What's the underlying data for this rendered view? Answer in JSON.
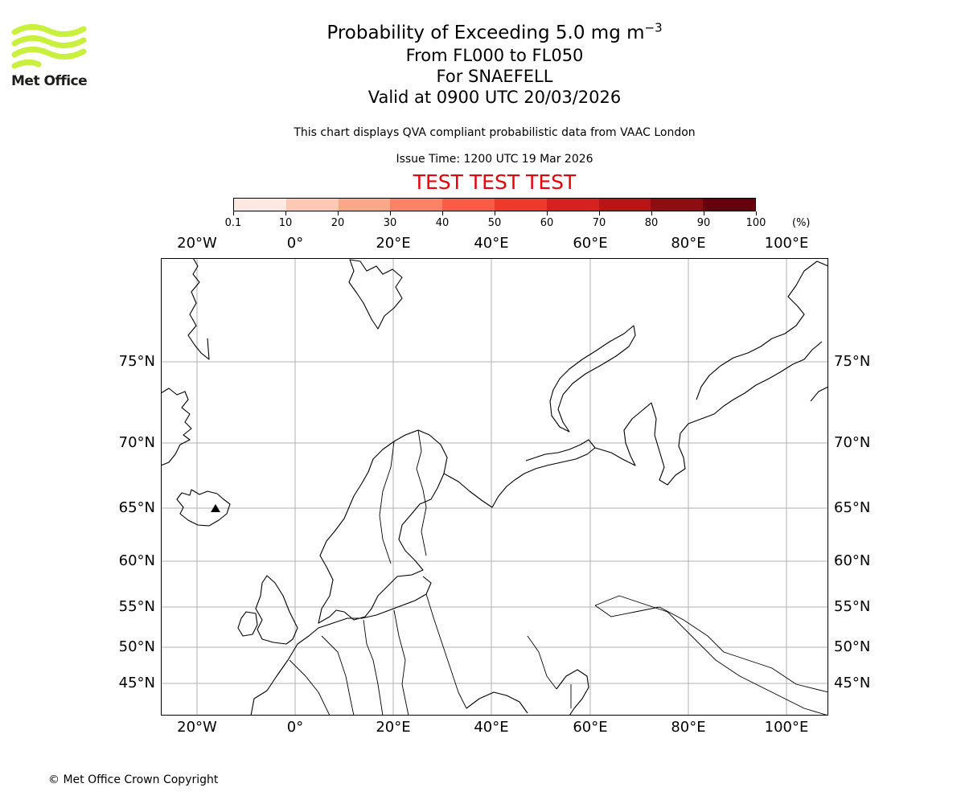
{
  "logo": {
    "text": "Met Office",
    "color": "#c8f03c"
  },
  "title": {
    "line1": "Probability of Exceeding 5.0 mg m",
    "line1_sup": "−3",
    "line2": "From FL000 to FL050",
    "line3": "For SNAEFELL",
    "line4": "Valid at 0900 UTC 20/03/2026"
  },
  "subtitle": "This chart displays QVA compliant probabilistic data from VAAC London",
  "issue_time": "Issue Time: 1200 UTC 19 Mar 2026",
  "test_banner": {
    "text": "TEST TEST TEST",
    "color": "#e8000b"
  },
  "colorbar": {
    "labels": [
      "0.1",
      "10",
      "20",
      "30",
      "40",
      "50",
      "60",
      "70",
      "80",
      "90",
      "100"
    ],
    "unit": "(%)",
    "colors": [
      "#fee9e2",
      "#fdc9b4",
      "#fca68a",
      "#fb8264",
      "#f85c42",
      "#ee3a2a",
      "#d52120",
      "#b81519",
      "#8e0d13",
      "#67000d"
    ]
  },
  "map": {
    "lon_labels": [
      "20°W",
      "0°",
      "20°E",
      "40°E",
      "60°E",
      "80°E",
      "100°E"
    ],
    "lat_labels": [
      "75°N",
      "70°N",
      "65°N",
      "60°N",
      "55°N",
      "50°N",
      "45°N"
    ],
    "grid_color": "#b0b0b0",
    "volcano_marker": "SNAEFELL"
  },
  "footer": "© Met Office Crown Copyright"
}
